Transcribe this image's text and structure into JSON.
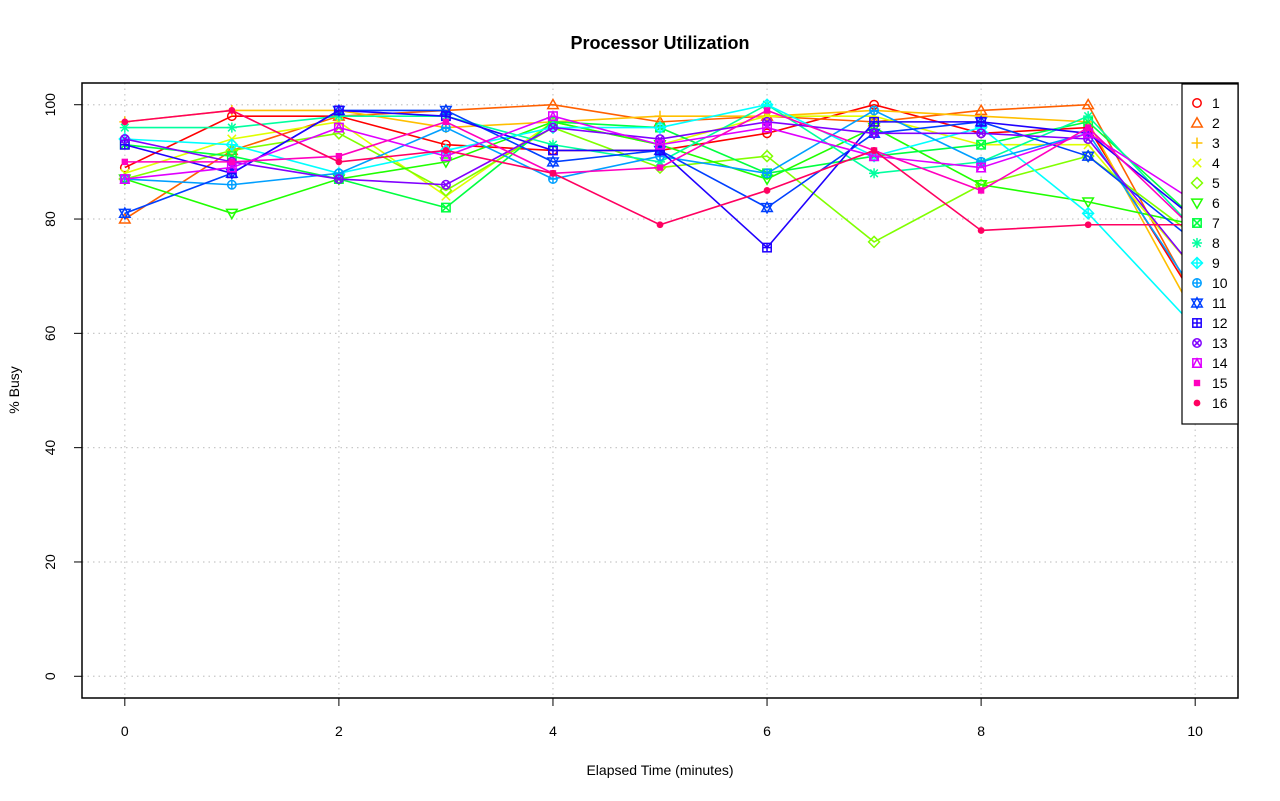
{
  "chart_data": {
    "type": "line",
    "title": "Processor Utilization",
    "xlabel": "Elapsed Time (minutes)",
    "ylabel": "% Busy",
    "xlim": [
      -0.4,
      10.4
    ],
    "ylim": [
      -3.8,
      103.8
    ],
    "x_ticks": [
      0,
      2,
      4,
      6,
      8,
      10
    ],
    "y_ticks": [
      0,
      20,
      40,
      60,
      80,
      100
    ],
    "grid": true,
    "legend_position": "top-right",
    "x": [
      0,
      1,
      2,
      3,
      4,
      5,
      6,
      7,
      8,
      9,
      10
    ],
    "series": [
      {
        "name": "1",
        "color": "#FF0000",
        "marker": "circle-open",
        "values": [
          89,
          98,
          98,
          93,
          92,
          92,
          95,
          100,
          95,
          96,
          66
        ]
      },
      {
        "name": "2",
        "color": "#FF6000",
        "marker": "triangle-up-open",
        "values": [
          80,
          92,
          98,
          99,
          100,
          97,
          98,
          97,
          99,
          100,
          66
        ]
      },
      {
        "name": "3",
        "color": "#FFBF00",
        "marker": "plus",
        "values": [
          97,
          99,
          99,
          96,
          97,
          98,
          98,
          99,
          98,
          97,
          63
        ]
      },
      {
        "name": "4",
        "color": "#DFFF00",
        "marker": "cross",
        "values": [
          88,
          94,
          97,
          84,
          97,
          93,
          98,
          98,
          93,
          93,
          71
        ]
      },
      {
        "name": "5",
        "color": "#80FF00",
        "marker": "diamond-open",
        "values": [
          87,
          92,
          95,
          85,
          96,
          89,
          91,
          76,
          86,
          91,
          77
        ]
      },
      {
        "name": "6",
        "color": "#20FF00",
        "marker": "triangle-down-open",
        "values": [
          87,
          81,
          87,
          90,
          97,
          93,
          87,
          96,
          86,
          83,
          79
        ]
      },
      {
        "name": "7",
        "color": "#00FF40",
        "marker": "square-x",
        "values": [
          93,
          91,
          87,
          82,
          97,
          96,
          88,
          91,
          93,
          97,
          80
        ]
      },
      {
        "name": "8",
        "color": "#00FF9F",
        "marker": "asterisk",
        "values": [
          96,
          96,
          98,
          98,
          93,
          90,
          100,
          88,
          90,
          98,
          78
        ]
      },
      {
        "name": "9",
        "color": "#00FFFF",
        "marker": "diamond-plus",
        "values": [
          94,
          93,
          88,
          92,
          96,
          96,
          100,
          91,
          96,
          81,
          61
        ]
      },
      {
        "name": "10",
        "color": "#009FFF",
        "marker": "circle-plus",
        "values": [
          87,
          86,
          88,
          96,
          87,
          91,
          88,
          99,
          90,
          95,
          67
        ]
      },
      {
        "name": "11",
        "color": "#0040FF",
        "marker": "star-of-david",
        "values": [
          81,
          88,
          99,
          99,
          90,
          92,
          82,
          95,
          97,
          91,
          76
        ]
      },
      {
        "name": "12",
        "color": "#2000FF",
        "marker": "square-plus",
        "values": [
          93,
          88,
          99,
          98,
          92,
          92,
          75,
          97,
          97,
          95,
          80
        ]
      },
      {
        "name": "13",
        "color": "#8000FF",
        "marker": "circle-x",
        "values": [
          94,
          90,
          87,
          86,
          96,
          94,
          97,
          95,
          95,
          94,
          71
        ]
      },
      {
        "name": "14",
        "color": "#DF00FF",
        "marker": "square-triangle",
        "values": [
          87,
          89,
          96,
          91,
          98,
          93,
          96,
          91,
          89,
          95,
          83
        ]
      },
      {
        "name": "15",
        "color": "#FF00BF",
        "marker": "square-filled",
        "values": [
          90,
          90,
          91,
          97,
          88,
          89,
          99,
          92,
          85,
          96,
          78
        ]
      },
      {
        "name": "16",
        "color": "#FF0060",
        "marker": "circle-filled",
        "values": [
          97,
          99,
          90,
          92,
          88,
          79,
          85,
          92,
          78,
          79,
          79
        ]
      }
    ]
  }
}
